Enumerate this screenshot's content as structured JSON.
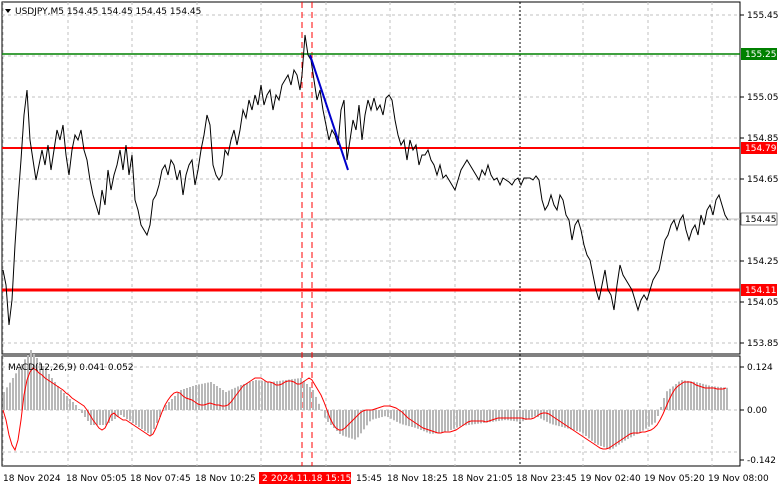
{
  "header": {
    "symbol_line": "USDJPY,M5  154.45 154.45 154.45 154.45"
  },
  "macd": {
    "label": "MACD(12,26,9) 0.041 0.052",
    "signal_color": "#ff0000",
    "hist_color": "#b8b8b8"
  },
  "price_axis": {
    "ticks": [
      "155.45",
      "155.05",
      "154.85",
      "154.65",
      "154.25",
      "154.05",
      "153.85"
    ]
  },
  "macd_axis": {
    "ticks": [
      "0.124",
      "0.00",
      "-0.142"
    ]
  },
  "levels": [
    {
      "label": "155.25",
      "color": "#008000"
    },
    {
      "label": "154.79",
      "color": "#ff0000"
    },
    {
      "label": "154.45",
      "color": "#ffffff"
    },
    {
      "label": "154.11",
      "color": "#ff0000"
    }
  ],
  "time_axis": {
    "labels": [
      "18 Nov 2024",
      "18 Nov 05:05",
      "18 Nov 07:45",
      "18 Nov 10:25",
      "15:45",
      "18 Nov 18:25",
      "18 Nov 21:05",
      "18 Nov 23:45",
      "19 Nov 02:40",
      "19 Nov 05:20",
      "19 Nov 08:00"
    ],
    "highlight_label": "2024.11.18 15:15",
    "highlight_prefix": "2"
  },
  "colors": {
    "price_line": "#000000",
    "trend_segment": "#0000cc",
    "highlight_marker": "#ff0000"
  }
}
